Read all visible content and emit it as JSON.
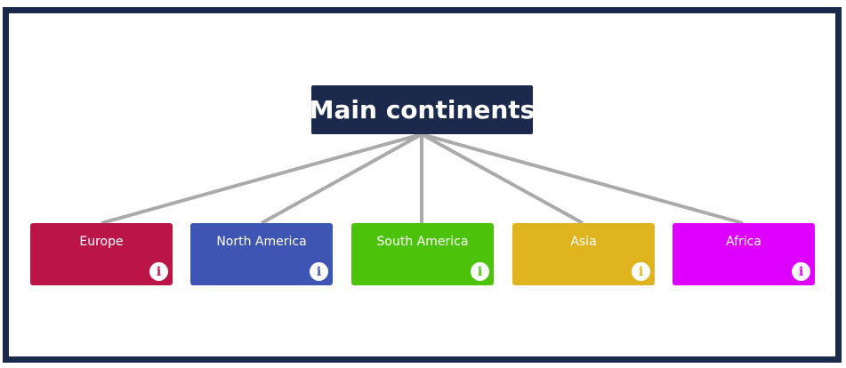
{
  "diagram": {
    "root": {
      "label": "Main continents",
      "color": "#1b2a4c"
    },
    "line_color": "#aaaaaa",
    "children": [
      {
        "label": "Europe",
        "color": "#bb1548",
        "info_icon": "info-icon"
      },
      {
        "label": "North America",
        "color": "#3e55b4",
        "info_icon": "info-icon"
      },
      {
        "label": "South America",
        "color": "#4cc30a",
        "info_icon": "info-icon"
      },
      {
        "label": "Asia",
        "color": "#e0b41e",
        "info_icon": "info-icon"
      },
      {
        "label": "Africa",
        "color": "#dd00ff",
        "info_icon": "info-icon"
      }
    ]
  }
}
